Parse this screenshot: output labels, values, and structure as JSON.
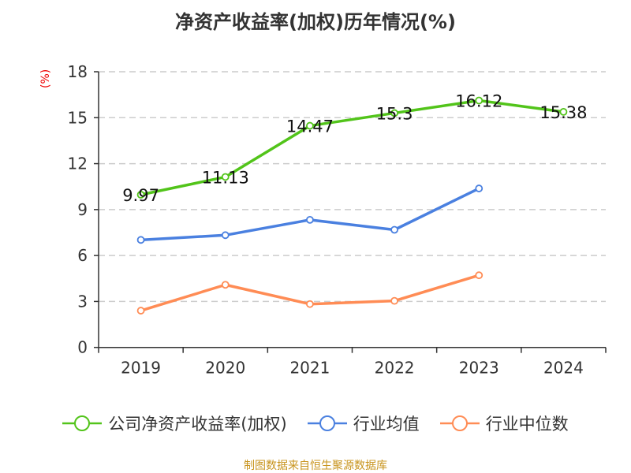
{
  "chart_data": {
    "type": "line",
    "title": "净资产收益率(加权)历年情况(%)",
    "ylabel": "(%)",
    "categories": [
      "2019",
      "2020",
      "2021",
      "2022",
      "2023",
      "2024"
    ],
    "ylim": [
      0,
      18
    ],
    "yticks": [
      0,
      3,
      6,
      9,
      12,
      15,
      18
    ],
    "grid": true,
    "legend_position": "bottom",
    "series": [
      {
        "name": "公司净资产收益率(加权)",
        "color": "#52c41a",
        "values": [
          9.97,
          11.13,
          14.47,
          15.3,
          16.12,
          15.38
        ],
        "labels": [
          "9.97",
          "11.13",
          "14.47",
          "15.3",
          "16.12",
          "15.38"
        ]
      },
      {
        "name": "行业均值",
        "color": "#4a80e0",
        "values": [
          7.02,
          7.33,
          8.33,
          7.68,
          10.38,
          null
        ]
      },
      {
        "name": "行业中位数",
        "color": "#ff8c55",
        "values": [
          2.4,
          4.09,
          2.83,
          3.04,
          4.71,
          null
        ]
      }
    ]
  },
  "source": "制图数据来自恒生聚源数据库"
}
